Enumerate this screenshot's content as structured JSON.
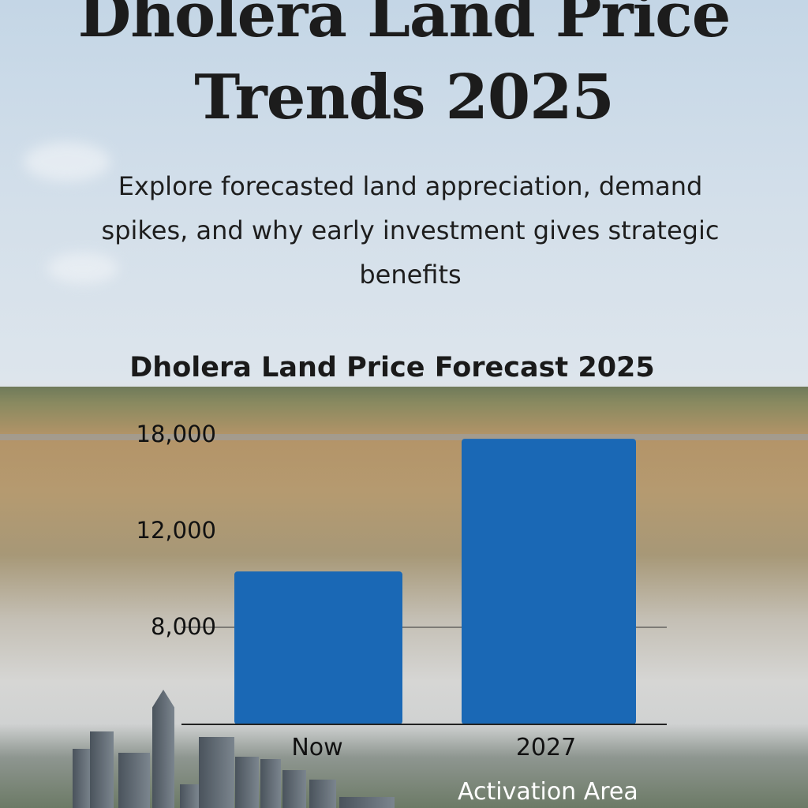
{
  "header": {
    "title": "Dholera Land Price Trends 2025",
    "subtitle": "Explore forecasted land appreciation, demand spikes, and why early investment gives strategic benefits"
  },
  "chart_data": {
    "type": "bar",
    "title": "Dholera Land Price Forecast 2025",
    "categories": [
      "Now",
      "2027"
    ],
    "values": [
      10300,
      17700
    ],
    "yticks": [
      "18,000",
      "12,000",
      "8,000"
    ],
    "ytick_values": [
      18000,
      12000,
      8000
    ],
    "xlabel": "",
    "ylabel": "",
    "grid": "single line at 8,000",
    "bar_color": "#1a68b5"
  },
  "annotation": "Activation Area"
}
